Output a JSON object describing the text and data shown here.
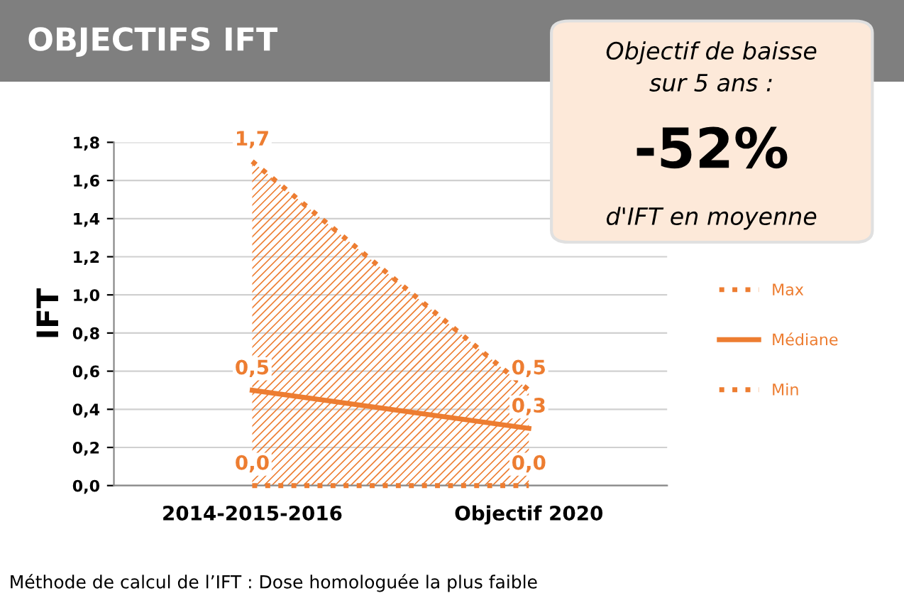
{
  "chart_data": {
    "type": "line",
    "title": "OBJECTIFS IFT",
    "ylabel": "IFT",
    "categories": [
      "2014-2015-2016",
      "Objectif 2020"
    ],
    "series": [
      {
        "name": "Max",
        "type": "area",
        "color": "#ed7d31",
        "line_style": "dotted",
        "values": [
          1.7,
          0.5
        ],
        "value_labels": [
          "1,7",
          "0,5"
        ]
      },
      {
        "name": "Médiane",
        "color": "#ed7d31",
        "line_style": "solid",
        "values": [
          0.5,
          0.3
        ],
        "value_labels": [
          "0,5",
          "0,3"
        ]
      },
      {
        "name": "Min",
        "color": "#ed7d31",
        "line_style": "dotted",
        "values": [
          0.0,
          0.0
        ],
        "value_labels": [
          "0,0",
          "0,0"
        ]
      }
    ],
    "ylim": [
      0,
      1.8
    ],
    "yticks": [
      {
        "value": 0,
        "label": "0,0"
      },
      {
        "value": 0.2,
        "label": "0,2"
      },
      {
        "value": 0.4,
        "label": "0,4"
      },
      {
        "value": 0.6,
        "label": "0,6"
      },
      {
        "value": 0.8,
        "label": "0,8"
      },
      {
        "value": 1.0,
        "label": "1,0"
      },
      {
        "value": 1.2,
        "label": "1,2"
      },
      {
        "value": 1.4,
        "label": "1,4"
      },
      {
        "value": 1.6,
        "label": "1,6"
      },
      {
        "value": 1.8,
        "label": "1,8"
      }
    ],
    "grid": "y",
    "legend": "right",
    "marker": "none",
    "annotations": [
      "Objectif de baisse\nsur 5 ans :",
      "-52%",
      "d'IFT en moyenne",
      "Méthode de calcul de l’IFT : Dose homologuée la plus faible"
    ]
  }
}
